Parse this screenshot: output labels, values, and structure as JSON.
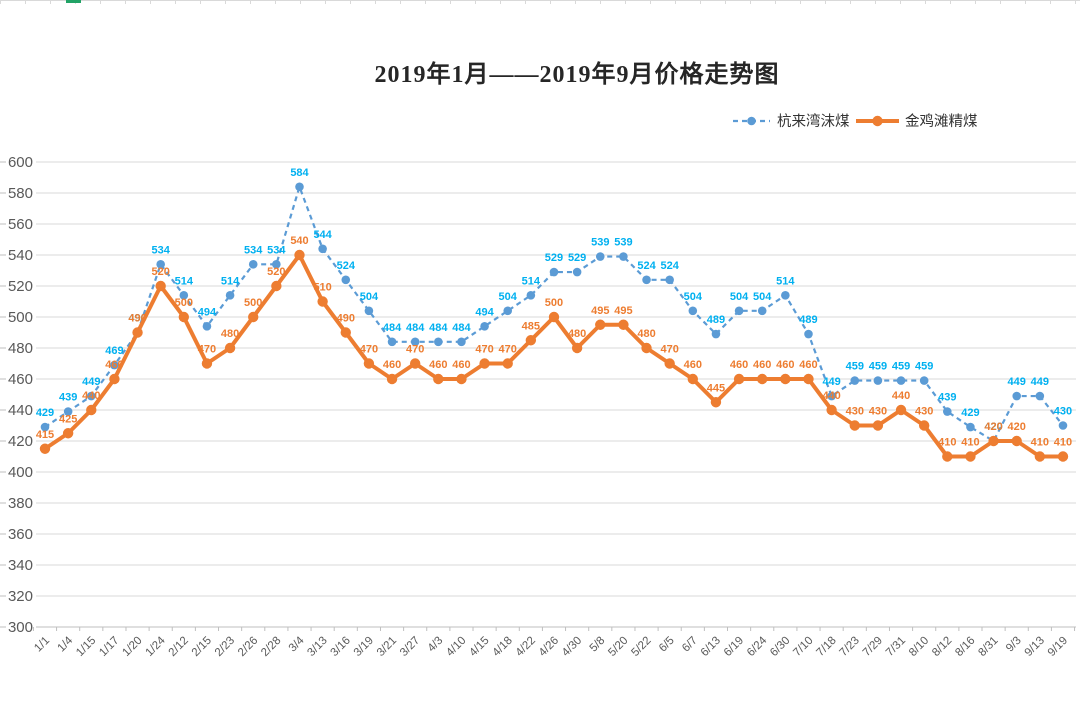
{
  "frame": {
    "top_border_color": "#D9D9D9",
    "accent_mark_color": "#21A366"
  },
  "chart_data": {
    "type": "line",
    "title": "2019年1月——2019年9月价格走势图",
    "categories": [
      "1/1",
      "1/4",
      "1/15",
      "1/17",
      "1/20",
      "1/24",
      "2/12",
      "2/15",
      "2/23",
      "2/26",
      "2/28",
      "3/4",
      "3/13",
      "3/16",
      "3/19",
      "3/21",
      "3/27",
      "4/3",
      "4/10",
      "4/15",
      "4/18",
      "4/22",
      "4/26",
      "4/30",
      "5/8",
      "5/20",
      "5/22",
      "6/5",
      "6/7",
      "6/13",
      "6/19",
      "6/24",
      "6/30",
      "7/10",
      "7/18",
      "7/23",
      "7/29",
      "7/31",
      "8/10",
      "8/12",
      "8/16",
      "8/31",
      "9/3",
      "9/13",
      "9/19"
    ],
    "series": [
      {
        "name": "杭来湾沫煤",
        "color": "#5B9BD5",
        "label_color": "#00B0F0",
        "style": "dashed",
        "marker": "circle",
        "values": [
          429,
          439,
          449,
          469,
          490,
          534,
          514,
          494,
          514,
          534,
          534,
          584,
          544,
          524,
          504,
          484,
          484,
          484,
          484,
          494,
          504,
          514,
          529,
          529,
          539,
          539,
          524,
          524,
          504,
          489,
          504,
          504,
          514,
          489,
          449,
          459,
          459,
          459,
          459,
          439,
          429,
          420,
          449,
          449,
          430
        ]
      },
      {
        "name": "金鸡滩精煤",
        "color": "#ED7D31",
        "label_color": "#ED7D31",
        "style": "solid",
        "marker": "circle",
        "values": [
          415,
          425,
          440,
          460,
          490,
          520,
          500,
          470,
          480,
          500,
          520,
          540,
          510,
          490,
          470,
          460,
          470,
          460,
          460,
          470,
          470,
          485,
          500,
          480,
          495,
          495,
          480,
          470,
          460,
          445,
          460,
          460,
          460,
          460,
          440,
          430,
          430,
          440,
          430,
          410,
          410,
          420,
          420,
          410,
          410
        ]
      }
    ],
    "ylim": [
      300,
      600
    ],
    "ytick_step": 20,
    "yticks": [
      600,
      580,
      560,
      540,
      520,
      500,
      480,
      460,
      440,
      420,
      400,
      380,
      360,
      340,
      320,
      300
    ],
    "grid": true,
    "gridline_color": "#D9D9D9",
    "axis_line_color": "#BFBFBF",
    "axis_text_color": "#595959",
    "legend_position": "top-right",
    "data_labels": true
  }
}
